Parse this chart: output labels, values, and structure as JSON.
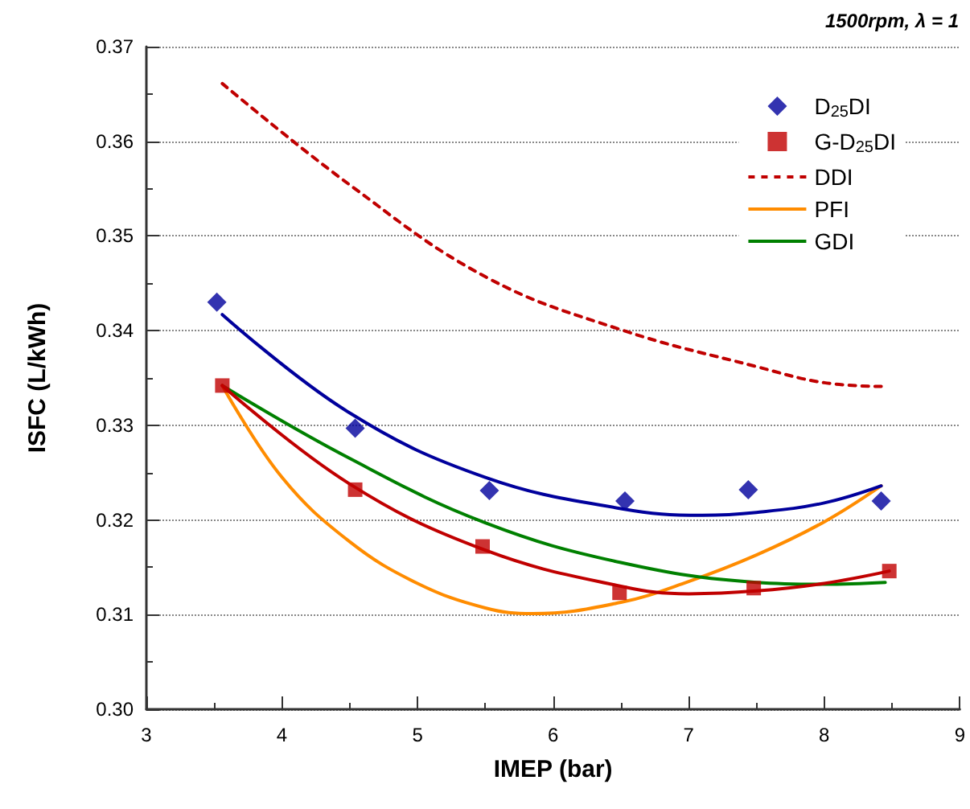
{
  "chart_data": {
    "type": "line",
    "title": "1500rpm, λ = 1",
    "xlabel": "IMEP (bar)",
    "ylabel": "ISFC (L/kWh)",
    "xlim": [
      3,
      9
    ],
    "xticks": [
      3,
      4,
      5,
      6,
      7,
      8,
      9
    ],
    "ylim": [
      0.3,
      0.37
    ],
    "yticks": [
      {
        "value": 0.3,
        "label": "0.30"
      },
      0.31,
      0.32,
      0.33,
      0.34,
      0.35,
      0.36,
      0.37
    ],
    "grid": "y",
    "legend": "top right",
    "series": [
      {
        "name": "D$_{25}$DI",
        "type": "scatter",
        "marker": "diamond",
        "color": "#00009c",
        "x": [
          3.52,
          4.54,
          5.53,
          6.53,
          7.44,
          8.42
        ],
        "values": [
          0.343,
          0.3297,
          0.3231,
          0.322,
          0.3232,
          0.322
        ]
      },
      {
        "name": "G-D$_{25}$DI",
        "type": "scatter",
        "marker": "square",
        "color": "#c00000",
        "x": [
          3.56,
          4.54,
          5.48,
          6.49,
          7.48,
          8.48
        ],
        "values": [
          0.3342,
          0.3232,
          0.3172,
          0.3123,
          0.3128,
          0.3146
        ]
      },
      {
        "name": "DDI",
        "type": "line",
        "line_style": "dashed",
        "color": "#c00000",
        "x": [
          3.56,
          4.5,
          5.5,
          6.5,
          7.5,
          8.0,
          8.45
        ],
        "values": [
          0.3661,
          0.3554,
          0.3457,
          0.3401,
          0.3362,
          0.3345,
          0.3341
        ]
      },
      {
        "name": "PFI",
        "type": "line",
        "color": "#ff8c00",
        "x": [
          3.56,
          4.0,
          4.5,
          5.0,
          5.5,
          5.85,
          6.5,
          7.0,
          7.5,
          8.0,
          8.42
        ],
        "values": [
          0.3342,
          0.3245,
          0.3177,
          0.3133,
          0.3107,
          0.3101,
          0.3113,
          0.3135,
          0.3163,
          0.3198,
          0.3236
        ]
      },
      {
        "name": "GDI",
        "type": "line",
        "color": "#008000",
        "x": [
          3.56,
          4.5,
          5.5,
          6.5,
          7.5,
          8.0,
          8.45
        ],
        "values": [
          0.3342,
          0.3265,
          0.3197,
          0.3155,
          0.3134,
          0.3132,
          0.3134
        ]
      },
      {
        "type": "line",
        "color": "#00009c",
        "x": [
          3.56,
          4.5,
          5.5,
          6.5,
          7.1,
          7.5,
          8.0,
          8.42
        ],
        "values": [
          0.3417,
          0.3313,
          0.3245,
          0.3212,
          0.3205,
          0.3208,
          0.3218,
          0.3236
        ]
      },
      {
        "type": "line",
        "color": "#c00000",
        "x": [
          3.56,
          4.5,
          5.5,
          6.5,
          7.0,
          7.5,
          8.0,
          8.48
        ],
        "values": [
          0.3342,
          0.3238,
          0.3168,
          0.313,
          0.3122,
          0.3125,
          0.3133,
          0.3146
        ]
      }
    ]
  }
}
